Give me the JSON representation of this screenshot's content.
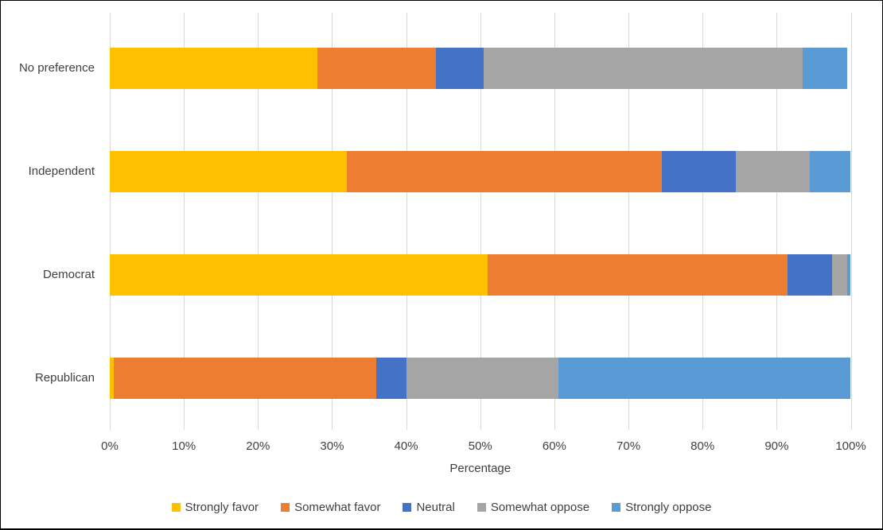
{
  "chart_data": {
    "type": "bar",
    "orientation": "horizontal",
    "stacked": true,
    "title": "",
    "xlabel": "Percentage",
    "ylabel": "",
    "categories": [
      "No preference",
      "Independent",
      "Democrat",
      "Republican"
    ],
    "series": [
      {
        "name": "Strongly favor",
        "color": "#FFC000",
        "values": [
          28,
          32,
          51,
          0.5
        ]
      },
      {
        "name": "Somewhat favor",
        "color": "#ED7D31",
        "values": [
          16,
          42.5,
          40.5,
          35.5
        ]
      },
      {
        "name": "Neutral",
        "color": "#4472C4",
        "values": [
          6.5,
          10,
          6,
          4
        ]
      },
      {
        "name": "Somewhat oppose",
        "color": "#A5A5A5",
        "values": [
          43,
          10,
          2,
          20.5
        ]
      },
      {
        "name": "Strongly oppose",
        "color": "#5B9BD5",
        "values": [
          6,
          5.5,
          0.5,
          39.5
        ]
      }
    ],
    "xlim": [
      0,
      100
    ],
    "x_tick_labels": [
      "0%",
      "10%",
      "20%",
      "30%",
      "40%",
      "50%",
      "60%",
      "70%",
      "80%",
      "90%",
      "100%"
    ],
    "x_tick_values": [
      0,
      10,
      20,
      30,
      40,
      50,
      60,
      70,
      80,
      90,
      100
    ],
    "grid": "vertical",
    "gridline_color": "#D9D9D9",
    "text_color": "#3F3F3F",
    "legend_position": "bottom"
  }
}
